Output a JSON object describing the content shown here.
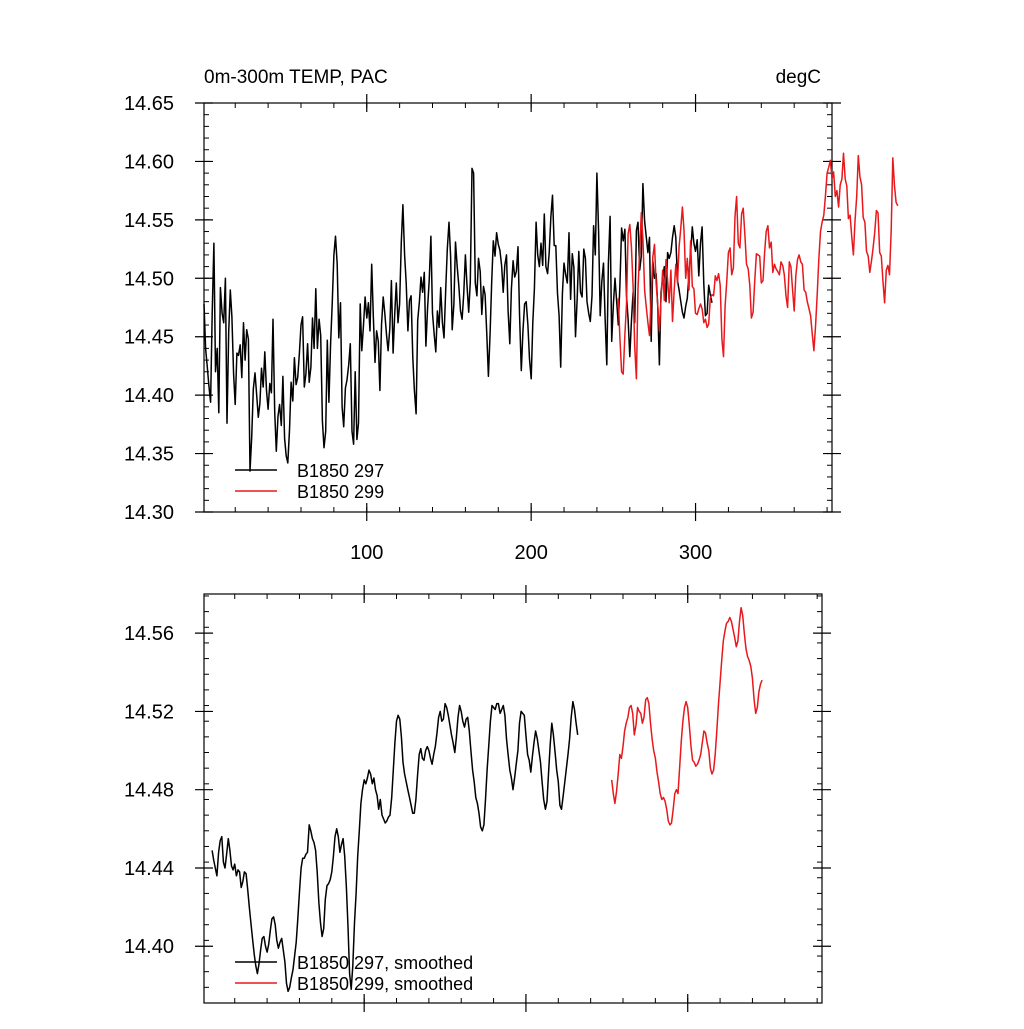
{
  "chart_data": [
    {
      "type": "line",
      "title_left": "0m-300m TEMP, PAC",
      "title_right": "degC",
      "xlim": [
        1,
        383
      ],
      "ylim": [
        14.3,
        14.65
      ],
      "x_ticks": [
        100,
        200,
        300
      ],
      "x_tick_labels": [
        "100",
        "200",
        "300"
      ],
      "y_ticks": [
        14.3,
        14.35,
        14.4,
        14.45,
        14.5,
        14.55,
        14.6,
        14.65
      ],
      "y_tick_labels": [
        "14.30",
        "14.35",
        "14.40",
        "14.45",
        "14.50",
        "14.55",
        "14.60",
        "14.65"
      ],
      "legend_position": "bottom-left",
      "series": [
        {
          "name": "B1850 297",
          "color": "#000000",
          "x_start": 1,
          "values": [
            14.478,
            14.44,
            14.424,
            14.408,
            14.394,
            14.47,
            14.53,
            14.42,
            14.44,
            14.385,
            14.492,
            14.47,
            14.462,
            14.5,
            14.376,
            14.454,
            14.49,
            14.467,
            14.418,
            14.392,
            14.436,
            14.434,
            14.443,
            14.415,
            14.462,
            14.43,
            14.456,
            14.448,
            14.335,
            14.364,
            14.405,
            14.419,
            14.401,
            14.381,
            14.393,
            14.423,
            14.407,
            14.437,
            14.404,
            14.388,
            14.41,
            14.402,
            14.465,
            14.386,
            14.352,
            14.382,
            14.392,
            14.374,
            14.416,
            14.363,
            14.348,
            14.342,
            14.37,
            14.411,
            14.395,
            14.432,
            14.409,
            14.415,
            14.436,
            14.46,
            14.467,
            14.407,
            14.418,
            14.444,
            14.411,
            14.424,
            14.466,
            14.44,
            14.491,
            14.44,
            14.465,
            14.451,
            14.378,
            14.355,
            14.369,
            14.447,
            14.394,
            14.444,
            14.478,
            14.52,
            14.536,
            14.512,
            14.449,
            14.479,
            14.39,
            14.373,
            14.406,
            14.413,
            14.426,
            14.444,
            14.369,
            14.358,
            14.42,
            14.362,
            14.376,
            14.478,
            14.438,
            14.46,
            14.484,
            14.466,
            14.479,
            14.455,
            14.512,
            14.468,
            14.428,
            14.455,
            14.446,
            14.404,
            14.46,
            14.484,
            14.47,
            14.452,
            14.438,
            14.457,
            14.498,
            14.436,
            14.469,
            14.496,
            14.462,
            14.478,
            14.531,
            14.563,
            14.52,
            14.496,
            14.455,
            14.481,
            14.485,
            14.432,
            14.404,
            14.384,
            14.464,
            14.48,
            14.501,
            14.488,
            14.505,
            14.442,
            14.475,
            14.498,
            14.536,
            14.47,
            14.452,
            14.437,
            14.472,
            14.458,
            14.492,
            14.462,
            14.449,
            14.49,
            14.525,
            14.548,
            14.519,
            14.456,
            14.478,
            14.531,
            14.51,
            14.494,
            14.472,
            14.465,
            14.486,
            14.52,
            14.494,
            14.471,
            14.497,
            14.594,
            14.59,
            14.496,
            14.485,
            14.517,
            14.506,
            14.469,
            14.493,
            14.486,
            14.452,
            14.416,
            14.453,
            14.497,
            14.532,
            14.519,
            14.539,
            14.529,
            14.524,
            14.511,
            14.488,
            14.511,
            14.52,
            14.472,
            14.444,
            14.491,
            14.515,
            14.501,
            14.506,
            14.527,
            14.467,
            14.421,
            14.454,
            14.478,
            14.48,
            14.46,
            14.431,
            14.414,
            14.462,
            14.491,
            14.548,
            14.52,
            14.51,
            14.53,
            14.511,
            14.555,
            14.51,
            14.504,
            14.522,
            14.553,
            14.571,
            14.528,
            14.528,
            14.487,
            14.468,
            14.424,
            14.487,
            14.513,
            14.503,
            14.496,
            14.539,
            14.482,
            14.521,
            14.509,
            14.45,
            14.483,
            14.523,
            14.488,
            14.484,
            14.525,
            14.517,
            14.48,
            14.47,
            14.463,
            14.485,
            14.545,
            14.52,
            14.59,
            14.54,
            14.468,
            14.497,
            14.513,
            14.466,
            14.426,
            14.513,
            14.553,
            14.446,
            14.478,
            14.5,
            14.481,
            14.46,
            14.494,
            14.543,
            14.532,
            14.542,
            14.485,
            14.465,
            14.433,
            14.463,
            14.488,
            14.462,
            14.541,
            14.548,
            14.507,
            14.519,
            14.581,
            14.549,
            14.536,
            14.522,
            14.535,
            14.446,
            14.515,
            14.5,
            14.504,
            14.477,
            14.426,
            14.488,
            14.5,
            14.51,
            14.48,
            14.522,
            14.517,
            14.522,
            14.535,
            14.545,
            14.535,
            14.498,
            14.49,
            14.48,
            14.471,
            14.466,
            14.476,
            14.483,
            14.503,
            14.521,
            14.544,
            14.53,
            14.523,
            14.533,
            14.502,
            14.53,
            14.544,
            14.495,
            14.468,
            14.47,
            14.494,
            14.486,
            14.479
          ]
        },
        {
          "name": "B1850 299",
          "color": "#e8181c",
          "x_start": 253,
          "values": [
            14.483,
            14.449,
            14.42,
            14.418,
            14.452,
            14.478,
            14.538,
            14.546,
            14.527,
            14.493,
            14.442,
            14.414,
            14.491,
            14.524,
            14.556,
            14.534,
            14.49,
            14.476,
            14.462,
            14.451,
            14.484,
            14.518,
            14.529,
            14.496,
            14.478,
            14.455,
            14.482,
            14.507,
            14.481,
            14.516,
            14.498,
            14.479,
            14.507,
            14.463,
            14.49,
            14.512,
            14.496,
            14.527,
            14.543,
            14.561,
            14.541,
            14.5,
            14.517,
            14.49,
            14.532,
            14.493,
            14.491,
            14.47,
            14.469,
            14.474,
            14.478,
            14.474,
            14.462,
            14.465,
            14.458,
            14.461,
            14.483,
            14.486,
            14.485,
            14.502,
            14.498,
            14.504,
            14.494,
            14.448,
            14.433,
            14.476,
            14.498,
            14.522,
            14.526,
            14.503,
            14.509,
            14.553,
            14.57,
            14.53,
            14.526,
            14.555,
            14.56,
            14.537,
            14.512,
            14.508,
            14.494,
            14.466,
            14.471,
            14.497,
            14.521,
            14.52,
            14.519,
            14.496,
            14.498,
            14.522,
            14.54,
            14.545,
            14.526,
            14.531,
            14.505,
            14.512,
            14.508,
            14.506,
            14.503,
            14.514,
            14.511,
            14.503,
            14.485,
            14.475,
            14.514,
            14.51,
            14.491,
            14.472,
            14.502,
            14.516,
            14.52,
            14.514,
            14.512,
            14.49,
            14.488,
            14.48,
            14.474,
            14.468,
            14.452,
            14.438,
            14.46,
            14.486,
            14.516,
            14.54,
            14.548,
            14.554,
            14.57,
            14.59,
            14.595,
            14.601,
            14.585,
            14.591,
            14.57,
            14.575,
            14.561,
            14.58,
            14.585,
            14.607,
            14.585,
            14.579,
            14.551,
            14.554,
            14.536,
            14.52,
            14.549,
            14.57,
            14.605,
            14.587,
            14.58,
            14.552,
            14.548,
            14.523,
            14.519,
            14.505,
            14.515,
            14.526,
            14.539,
            14.558,
            14.556,
            14.522,
            14.519,
            14.497,
            14.479,
            14.507,
            14.511,
            14.503,
            14.541,
            14.603,
            14.579,
            14.565,
            14.562
          ]
        }
      ]
    },
    {
      "type": "line",
      "title_left": "",
      "title_right": "",
      "xlim": [
        1,
        383
      ],
      "ylim": [
        14.371,
        14.58
      ],
      "x_ticks": [
        100,
        200,
        300
      ],
      "x_tick_labels": [
        "",
        "",
        ""
      ],
      "y_ticks": [
        14.4,
        14.44,
        14.48,
        14.52,
        14.56
      ],
      "y_tick_labels": [
        "14.40",
        "14.44",
        "14.48",
        "14.52",
        "14.56"
      ],
      "legend_position": "bottom-left",
      "series": [
        {
          "name": "B1850 297, smoothed",
          "color": "#000000",
          "x_start": 6,
          "values": [
            14.449,
            14.444,
            14.44,
            14.436,
            14.448,
            14.454,
            14.456,
            14.443,
            14.44,
            14.447,
            14.455,
            14.449,
            14.441,
            14.439,
            14.442,
            14.436,
            14.439,
            14.438,
            14.43,
            14.433,
            14.438,
            14.437,
            14.429,
            14.42,
            14.412,
            14.404,
            14.396,
            14.39,
            14.386,
            14.391,
            14.398,
            14.404,
            14.405,
            14.4,
            14.397,
            14.401,
            14.408,
            14.414,
            14.415,
            14.411,
            14.403,
            14.399,
            14.402,
            14.404,
            14.398,
            14.392,
            14.381,
            14.377,
            14.379,
            14.384,
            14.388,
            14.395,
            14.402,
            14.414,
            14.428,
            14.44,
            14.445,
            14.445,
            14.447,
            14.448,
            14.462,
            14.459,
            14.455,
            14.453,
            14.449,
            14.438,
            14.422,
            14.412,
            14.405,
            14.409,
            14.424,
            14.431,
            14.432,
            14.434,
            14.438,
            14.446,
            14.456,
            14.46,
            14.456,
            14.448,
            14.452,
            14.455,
            14.446,
            14.43,
            14.41,
            14.386,
            14.378,
            14.39,
            14.412,
            14.427,
            14.446,
            14.459,
            14.473,
            14.48,
            14.485,
            14.483,
            14.486,
            14.49,
            14.488,
            14.483,
            14.486,
            14.48,
            14.477,
            14.47,
            14.475,
            14.467,
            14.465,
            14.463,
            14.464,
            14.466,
            14.467,
            14.476,
            14.49,
            14.504,
            14.515,
            14.518,
            14.516,
            14.507,
            14.494,
            14.488,
            14.484,
            14.48,
            14.476,
            14.472,
            14.468,
            14.468,
            14.475,
            14.487,
            14.498,
            14.501,
            14.496,
            14.495,
            14.5,
            14.502,
            14.5,
            14.496,
            14.493,
            14.498,
            14.502,
            14.509,
            14.517,
            14.52,
            14.515,
            14.516,
            14.524,
            14.522,
            14.518,
            14.513,
            14.508,
            14.504,
            14.499,
            14.507,
            14.517,
            14.523,
            14.52,
            14.515,
            14.512,
            14.516,
            14.517,
            14.51,
            14.5,
            14.49,
            14.484,
            14.476,
            14.473,
            14.468,
            14.461,
            14.459,
            14.462,
            14.475,
            14.49,
            14.502,
            14.515,
            14.523,
            14.522,
            14.521,
            14.524,
            14.524,
            14.519,
            14.521,
            14.523,
            14.518,
            14.506,
            14.498,
            14.49,
            14.486,
            14.48,
            14.486,
            14.493,
            14.5,
            14.514,
            14.52,
            14.519,
            14.518,
            14.508,
            14.498,
            14.495,
            14.489,
            14.497,
            14.504,
            14.51,
            14.506,
            14.5,
            14.494,
            14.484,
            14.475,
            14.47,
            14.474,
            14.489,
            14.503,
            14.514,
            14.508,
            14.499,
            14.49,
            14.484,
            14.472,
            14.47,
            14.477,
            14.484,
            14.491,
            14.498,
            14.506,
            14.517,
            14.525,
            14.521,
            14.514,
            14.508
          ]
        },
        {
          "name": "B1850 299, smoothed",
          "color": "#e8181c",
          "x_start": 253,
          "values": [
            14.485,
            14.478,
            14.473,
            14.479,
            14.488,
            14.498,
            14.496,
            14.502,
            14.51,
            14.514,
            14.517,
            14.522,
            14.523,
            14.519,
            14.508,
            14.513,
            14.522,
            14.52,
            14.519,
            14.514,
            14.517,
            14.526,
            14.527,
            14.524,
            14.514,
            14.506,
            14.5,
            14.496,
            14.489,
            14.484,
            14.478,
            14.475,
            14.476,
            14.474,
            14.47,
            14.464,
            14.462,
            14.463,
            14.47,
            14.478,
            14.48,
            14.478,
            14.491,
            14.505,
            14.515,
            14.522,
            14.525,
            14.522,
            14.513,
            14.502,
            14.495,
            14.494,
            14.492,
            14.493,
            14.495,
            14.498,
            14.504,
            14.51,
            14.509,
            14.504,
            14.5,
            14.491,
            14.488,
            14.49,
            14.498,
            14.51,
            14.524,
            14.535,
            14.546,
            14.556,
            14.561,
            14.565,
            14.566,
            14.568,
            14.566,
            14.562,
            14.558,
            14.553,
            14.556,
            14.566,
            14.573,
            14.569,
            14.56,
            14.552,
            14.548,
            14.546,
            14.543,
            14.537,
            14.526,
            14.519,
            14.522,
            14.53,
            14.534,
            14.536
          ]
        }
      ]
    }
  ]
}
